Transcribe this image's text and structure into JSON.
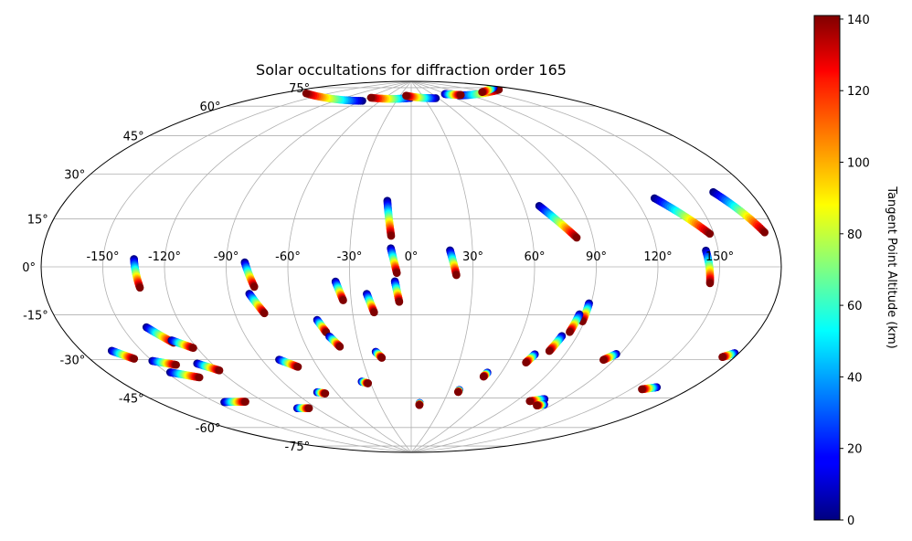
{
  "chart_data": {
    "type": "scatter",
    "projection": "Aitoff",
    "title": "Solar occultations for diffraction order 165",
    "xlabel": "",
    "ylabel": "",
    "grid": true,
    "lon_ticks": [
      {
        "value": -150,
        "label": "-150°"
      },
      {
        "value": -120,
        "label": "-120°"
      },
      {
        "value": -90,
        "label": "-90°"
      },
      {
        "value": -60,
        "label": "-60°"
      },
      {
        "value": -30,
        "label": "-30°"
      },
      {
        "value": 0,
        "label": "0°"
      },
      {
        "value": 30,
        "label": "30°"
      },
      {
        "value": 60,
        "label": "60°"
      },
      {
        "value": 90,
        "label": "90°"
      },
      {
        "value": 120,
        "label": "120°"
      },
      {
        "value": 150,
        "label": "150°"
      }
    ],
    "lat_ticks": [
      {
        "value": 75,
        "label": "75°"
      },
      {
        "value": 60,
        "label": "60°"
      },
      {
        "value": 45,
        "label": "45°"
      },
      {
        "value": 30,
        "label": "30°"
      },
      {
        "value": 15,
        "label": "15°"
      },
      {
        "value": 0,
        "label": "0°"
      },
      {
        "value": -15,
        "label": "-15°"
      },
      {
        "value": -30,
        "label": "-30°"
      },
      {
        "value": -45,
        "label": "-45°"
      },
      {
        "value": -60,
        "label": "-60°"
      },
      {
        "value": -75,
        "label": "-75°"
      }
    ],
    "colorbar": {
      "label": "Tangent Point Altitude (km)",
      "range": [
        0,
        141
      ],
      "colormap": "jet",
      "ticks": [
        {
          "value": 0,
          "label": "0"
        },
        {
          "value": 20,
          "label": "20"
        },
        {
          "value": 40,
          "label": "40"
        },
        {
          "value": 60,
          "label": "60"
        },
        {
          "value": 80,
          "label": "80"
        },
        {
          "value": 100,
          "label": "100"
        },
        {
          "value": 120,
          "label": "120"
        },
        {
          "value": 140,
          "label": "140"
        }
      ]
    },
    "tracks": [
      {
        "lon_start": -135,
        "lat_start": 3,
        "lon_end": -133,
        "lat_end": -8,
        "alt_start": 0,
        "alt_end": 141
      },
      {
        "lon_start": -81,
        "lat_start": 2,
        "lon_end": -77,
        "lat_end": -9,
        "alt_start": 0,
        "alt_end": 141
      },
      {
        "lon_start": -80,
        "lat_start": -12,
        "lon_end": -75,
        "lat_end": -21,
        "alt_start": 0,
        "alt_end": 141
      },
      {
        "lon_start": -37,
        "lat_start": -7,
        "lon_end": -34,
        "lat_end": -16,
        "alt_start": 0,
        "alt_end": 141
      },
      {
        "lon_start": -22,
        "lat_start": -13,
        "lon_end": -19,
        "lat_end": -22,
        "alt_start": 0,
        "alt_end": 141
      },
      {
        "lon_start": -13,
        "lat_start": 32,
        "lon_end": -10,
        "lat_end": 15,
        "alt_start": 0,
        "alt_end": 141
      },
      {
        "lon_start": -10,
        "lat_start": 9,
        "lon_end": -7,
        "lat_end": -3,
        "alt_start": 0,
        "alt_end": 141
      },
      {
        "lon_start": -8,
        "lat_start": -7,
        "lon_end": -6,
        "lat_end": -17,
        "alt_start": 0,
        "alt_end": 141
      },
      {
        "lon_start": 19,
        "lat_start": 8,
        "lon_end": 22,
        "lat_end": -4,
        "alt_start": 0,
        "alt_end": 141
      },
      {
        "lon_start": 68,
        "lat_start": 28,
        "lon_end": 82,
        "lat_end": 13,
        "alt_start": 0,
        "alt_end": 141
      },
      {
        "lon_start": 89,
        "lat_start": -16,
        "lon_end": 89,
        "lat_end": -24,
        "alt_start": 0,
        "alt_end": 141
      },
      {
        "lon_start": 130,
        "lat_start": 27,
        "lon_end": 148,
        "lat_end": 12,
        "alt_start": 0,
        "alt_end": 141
      },
      {
        "lon_start": 144,
        "lat_start": 6,
        "lon_end": 146,
        "lat_end": -6,
        "alt_start": 0,
        "alt_end": 141
      },
      {
        "lon_start": 162,
        "lat_start": 26,
        "lon_end": 175,
        "lat_end": 11,
        "alt_start": 0,
        "alt_end": 141
      },
      {
        "lon_start": -138,
        "lat_start": -23,
        "lon_end": -130,
        "lat_end": -30,
        "alt_start": 0,
        "alt_end": 141
      },
      {
        "lon_start": -130,
        "lat_start": -29,
        "lon_end": -122,
        "lat_end": -33,
        "alt_start": 0,
        "alt_end": 141
      },
      {
        "lon_start": -165,
        "lat_start": -29,
        "lon_end": -158,
        "lat_end": -33,
        "alt_start": 0,
        "alt_end": 141
      },
      {
        "lon_start": -150,
        "lat_start": -35,
        "lon_end": -140,
        "lat_end": -38,
        "alt_start": 0,
        "alt_end": 141
      },
      {
        "lon_start": -148,
        "lat_start": -40,
        "lon_end": -136,
        "lat_end": -44,
        "alt_start": 0,
        "alt_end": 141
      },
      {
        "lon_start": -128,
        "lat_start": -39,
        "lon_end": -120,
        "lat_end": -43,
        "alt_start": 0,
        "alt_end": 141
      },
      {
        "lon_start": -49,
        "lat_start": -25,
        "lon_end": -46,
        "lat_end": -31,
        "alt_start": 0,
        "alt_end": 141
      },
      {
        "lon_start": -45,
        "lat_start": -33,
        "lon_end": -41,
        "lat_end": -38,
        "alt_start": 0,
        "alt_end": 141
      },
      {
        "lon_start": -80,
        "lat_start": -42,
        "lon_end": -72,
        "lat_end": -46,
        "alt_start": 0,
        "alt_end": 141
      },
      {
        "lon_start": -21,
        "lat_start": -41,
        "lon_end": -18,
        "lat_end": -44,
        "alt_start": 0,
        "alt_end": 141
      },
      {
        "lon_start": -145,
        "lat_start": -54,
        "lon_end": -132,
        "lat_end": -56,
        "alt_start": 0,
        "alt_end": 141
      },
      {
        "lon_start": -105,
        "lat_start": -63,
        "lon_end": -96,
        "lat_end": -64,
        "alt_start": 0,
        "alt_end": 141
      },
      {
        "lon_start": -74,
        "lat_start": -58,
        "lon_end": -69,
        "lat_end": -59,
        "alt_start": 0,
        "alt_end": 141
      },
      {
        "lon_start": -36,
        "lat_start": -55,
        "lon_end": -32,
        "lat_end": -56,
        "alt_start": 0,
        "alt_end": 141
      },
      {
        "lon_start": 8,
        "lat_start": -66,
        "lon_end": 8,
        "lat_end": -67,
        "alt_start": 0,
        "alt_end": 141
      },
      {
        "lon_start": 38,
        "lat_start": -59,
        "lon_end": 38,
        "lat_end": -60,
        "alt_start": 0,
        "alt_end": 141
      },
      {
        "lon_start": 51,
        "lat_start": -50,
        "lon_end": 50,
        "lat_end": -52,
        "alt_start": 0,
        "alt_end": 141
      },
      {
        "lon_start": 73,
        "lat_start": -40,
        "lon_end": 71,
        "lat_end": -44,
        "alt_start": 0,
        "alt_end": 141
      },
      {
        "lon_start": 82,
        "lat_start": -31,
        "lon_end": 80,
        "lat_end": -38,
        "alt_start": 0,
        "alt_end": 141
      },
      {
        "lon_start": 86,
        "lat_start": -21,
        "lon_end": 85,
        "lat_end": -29,
        "alt_start": 0,
        "alt_end": 141
      },
      {
        "lon_start": 118,
        "lat_start": -36,
        "lon_end": 114,
        "lat_end": -39,
        "alt_start": 0,
        "alt_end": 141
      },
      {
        "lon_start": 108,
        "lat_start": -58,
        "lon_end": 100,
        "lat_end": -60,
        "alt_start": 0,
        "alt_end": 141
      },
      {
        "lon_start": 114,
        "lat_start": -60,
        "lon_end": 110,
        "lat_end": -61,
        "alt_start": 0,
        "alt_end": 141
      },
      {
        "lon_start": 162,
        "lat_start": -44,
        "lon_end": 156,
        "lat_end": -46,
        "alt_start": 0,
        "alt_end": 141
      },
      {
        "lon_start": 178,
        "lat_start": -28,
        "lon_end": 174,
        "lat_end": -30,
        "alt_start": 0,
        "alt_end": 141
      },
      {
        "lon_start": -88,
        "lat_start": 78,
        "lon_end": -166,
        "lat_end": 73,
        "alt_start": 0,
        "alt_end": 141
      },
      {
        "lon_start": -1,
        "lat_start": 82,
        "lon_end": -85,
        "lat_end": 80,
        "alt_start": 0,
        "alt_end": 141
      },
      {
        "lon_start": 55,
        "lat_start": 81,
        "lon_end": -14,
        "lat_end": 83,
        "alt_start": 0,
        "alt_end": 141
      },
      {
        "lon_start": 105,
        "lat_start": 80,
        "lon_end": 168,
        "lat_end": 76,
        "alt_start": 0,
        "alt_end": 141
      },
      {
        "lon_start": 88,
        "lat_start": 82,
        "lon_end": 110,
        "lat_end": 80,
        "alt_start": 0,
        "alt_end": 141
      },
      {
        "lon_start": 174,
        "lat_start": 77,
        "lon_end": 146,
        "lat_end": 78,
        "alt_start": 0,
        "alt_end": 141
      }
    ]
  }
}
